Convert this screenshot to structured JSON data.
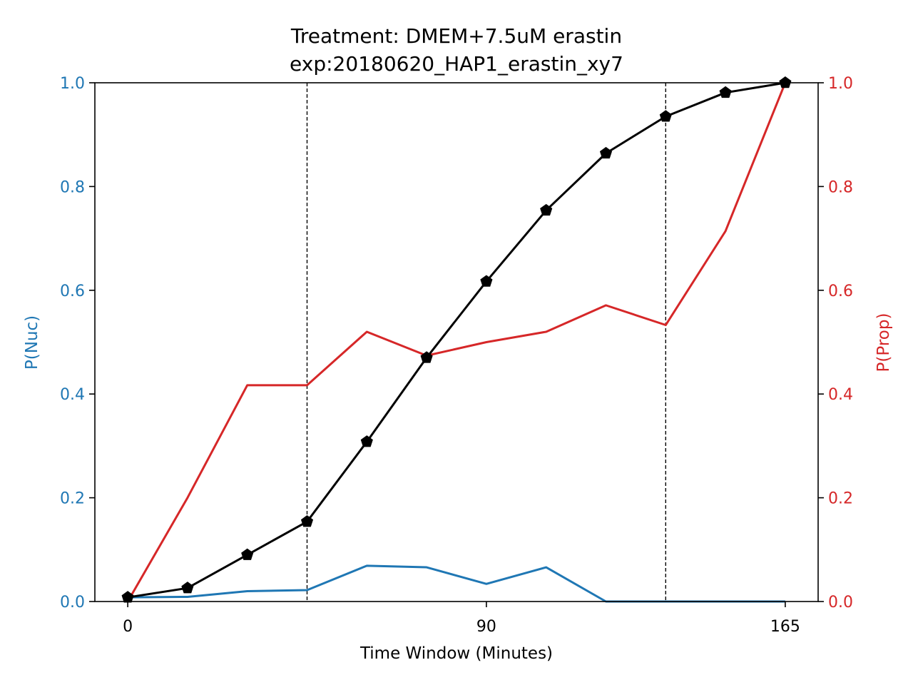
{
  "chart_data": {
    "type": "line",
    "title": "Treatment: DMEM+7.5uM erastin",
    "subtitle": "exp:20180620_HAP1_erastin_xy7",
    "xlabel": "Time Window (Minutes)",
    "ylabel_left": "P(Nuc)",
    "ylabel_right": "P(Prop)",
    "xlim": [
      -8.25,
      173.25
    ],
    "ylim_left": [
      0,
      1
    ],
    "ylim_right": [
      0,
      1
    ],
    "x_ticks": [
      0,
      90,
      165
    ],
    "y_ticks_left": [
      "0.0",
      "0.2",
      "0.4",
      "0.6",
      "0.8",
      "1.0"
    ],
    "y_ticks_right": [
      "0.0",
      "0.2",
      "0.4",
      "0.6",
      "0.8",
      "1.0"
    ],
    "vlines": [
      45,
      135
    ],
    "grid": false,
    "x": [
      0,
      15,
      30,
      45,
      60,
      75,
      90,
      105,
      120,
      135,
      150,
      165
    ],
    "series": [
      {
        "axis": "left",
        "color": "#1f77b4",
        "marker": "none",
        "values": [
          0.008,
          0.009,
          0.02,
          0.022,
          0.069,
          0.066,
          0.034,
          0.066,
          0.0,
          0.0,
          0.0,
          0.0
        ]
      },
      {
        "axis": "right",
        "color": "#d62728",
        "marker": "none",
        "values": [
          0.0,
          0.2,
          0.417,
          0.417,
          0.52,
          0.474,
          0.5,
          0.52,
          0.571,
          0.533,
          0.714,
          1.0
        ]
      },
      {
        "axis": "left",
        "color": "#000000",
        "marker": "pentagon",
        "values": [
          0.008,
          0.026,
          0.09,
          0.154,
          0.308,
          0.47,
          0.617,
          0.754,
          0.864,
          0.935,
          0.981,
          1.0
        ]
      }
    ],
    "colors": {
      "left_axis": "#1f77b4",
      "right_axis": "#d62728",
      "frame": "#000000"
    }
  }
}
